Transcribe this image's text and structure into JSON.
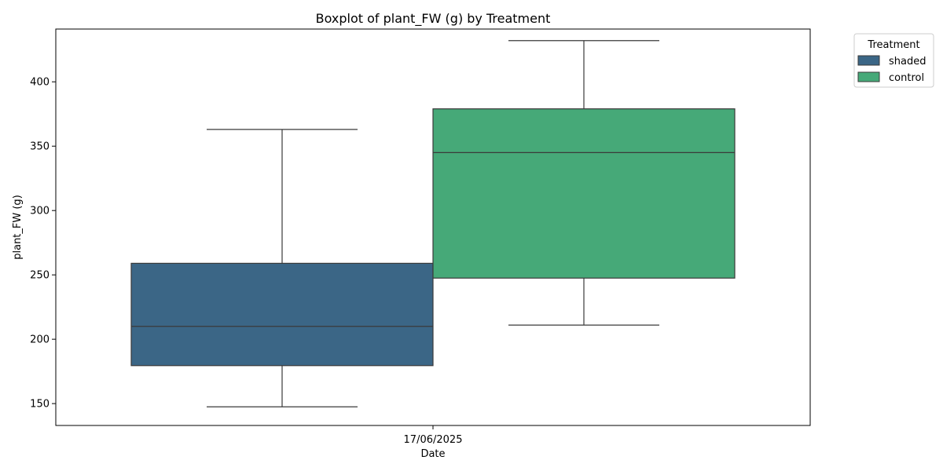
{
  "chart_data": {
    "type": "box",
    "title": "Boxplot of plant_FW (g) by Treatment",
    "xlabel": "Date",
    "ylabel": "plant_FW (g)",
    "categories": [
      "17/06/2025"
    ],
    "yticks": [
      150,
      200,
      250,
      300,
      350,
      400
    ],
    "ylim": [
      133,
      441
    ],
    "legend": {
      "title": "Treatment",
      "placement": "outside-top-right"
    },
    "series": [
      {
        "name": "shaded",
        "color": "#3b6686",
        "boxes": [
          {
            "category": "17/06/2025",
            "whisker_low": 147.5,
            "q1": 179.5,
            "median": 210,
            "q3": 259,
            "whisker_high": 363
          }
        ]
      },
      {
        "name": "control",
        "color": "#46a978",
        "boxes": [
          {
            "category": "17/06/2025",
            "whisker_low": 211,
            "q1": 247.5,
            "median": 345,
            "q3": 379,
            "whisker_high": 432
          }
        ]
      }
    ],
    "grid": false
  }
}
